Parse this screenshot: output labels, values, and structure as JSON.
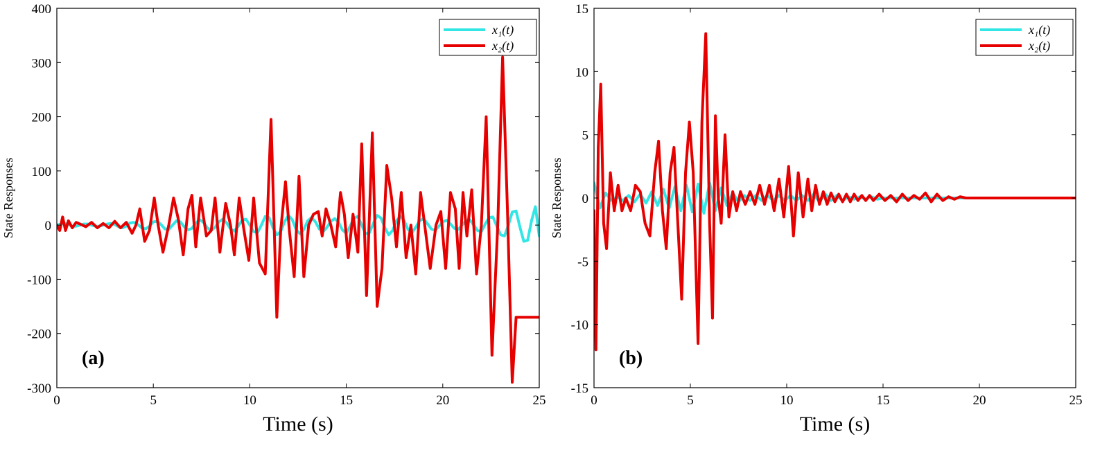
{
  "chart_data": [
    {
      "type": "line",
      "panel_label": "(a)",
      "xlabel": "Time (s)",
      "ylabel": "State Responses",
      "xlim": [
        0,
        25
      ],
      "ylim": [
        -300,
        400
      ],
      "xticks": [
        0,
        5,
        10,
        15,
        20,
        25
      ],
      "yticks": [
        -300,
        -200,
        -100,
        0,
        100,
        200,
        300,
        400
      ],
      "legend_position": "top-right",
      "series": [
        {
          "name": "x1(t)",
          "legend_label": "x₁(t)",
          "color": "#33e6e6",
          "x": [
            0,
            0.2,
            0.4,
            0.6,
            0.8,
            1.0,
            1.2,
            1.4,
            1.6,
            1.8,
            2.0,
            2.2,
            2.4,
            2.6,
            2.8,
            3.0,
            3.2,
            3.4,
            3.6,
            3.8,
            4.0,
            4.2,
            4.4,
            4.6,
            4.8,
            5.0,
            5.2,
            5.4,
            5.6,
            5.8,
            6.0,
            6.2,
            6.4,
            6.6,
            6.8,
            7.0,
            7.2,
            7.4,
            7.6,
            7.8,
            8.0,
            8.2,
            8.4,
            8.6,
            8.8,
            9.0,
            9.2,
            9.4,
            9.6,
            9.8,
            10.0,
            10.2,
            10.4,
            10.6,
            10.8,
            11.0,
            11.2,
            11.4,
            11.6,
            11.8,
            12.0,
            12.2,
            12.4,
            12.6,
            12.8,
            13.0,
            13.2,
            13.4,
            13.6,
            13.8,
            14.0,
            14.2,
            14.4,
            14.6,
            14.8,
            15.0,
            15.2,
            15.4,
            15.6,
            15.8,
            16.0,
            16.2,
            16.4,
            16.6,
            16.8,
            17.0,
            17.2,
            17.4,
            17.6,
            17.8,
            18.0,
            18.2,
            18.4,
            18.6,
            18.8,
            19.0,
            19.2,
            19.4,
            19.6,
            19.8,
            20.0,
            20.2,
            20.4,
            20.6,
            20.8,
            21.0,
            21.2,
            21.4,
            21.6,
            21.8,
            22.0,
            22.2,
            22.4,
            22.6,
            22.8,
            23.0,
            23.2,
            23.4,
            23.6,
            23.8,
            24.0,
            24.2,
            24.4,
            24.6,
            24.8,
            25.0
          ],
          "y": [
            0,
            2,
            3,
            1,
            -2,
            -2,
            0,
            2,
            2,
            0,
            -2,
            -2,
            0,
            2,
            3,
            1,
            -3,
            -5,
            -2,
            4,
            5,
            1,
            -5,
            -7,
            -2,
            6,
            7,
            1,
            -7,
            -8,
            0,
            8,
            6,
            -3,
            -9,
            -6,
            4,
            10,
            5,
            -5,
            -10,
            -4,
            6,
            11,
            4,
            -7,
            -11,
            -2,
            9,
            11,
            0,
            -12,
            -14,
            0,
            16,
            14,
            -5,
            -18,
            -12,
            6,
            18,
            10,
            -8,
            -16,
            -8,
            8,
            14,
            6,
            -7,
            -12,
            -4,
            7,
            12,
            5,
            -9,
            -15,
            -2,
            13,
            16,
            0,
            -16,
            -14,
            3,
            18,
            13,
            -5,
            -18,
            -10,
            8,
            16,
            8,
            -8,
            -14,
            -4,
            8,
            12,
            3,
            -7,
            -10,
            -2,
            6,
            9,
            2,
            -6,
            -8,
            0,
            8,
            10,
            0,
            -10,
            -12,
            2,
            14,
            15,
            -2,
            -18,
            -20,
            0,
            24,
            26,
            -4,
            -30,
            -28,
            8,
            34,
            -20
          ]
        },
        {
          "name": "x2(t)",
          "legend_label": "x₂(t)",
          "color": "#e60000",
          "x": [
            0,
            0.15,
            0.3,
            0.45,
            0.6,
            0.8,
            1.0,
            1.2,
            1.5,
            1.8,
            2.1,
            2.4,
            2.7,
            3.0,
            3.3,
            3.6,
            3.9,
            4.1,
            4.3,
            4.55,
            4.8,
            5.05,
            5.25,
            5.5,
            5.8,
            6.05,
            6.3,
            6.55,
            6.8,
            7.0,
            7.2,
            7.45,
            7.75,
            8.0,
            8.2,
            8.45,
            8.75,
            9.0,
            9.2,
            9.45,
            9.7,
            9.95,
            10.2,
            10.5,
            10.8,
            11.1,
            11.4,
            11.6,
            11.85,
            12.05,
            12.3,
            12.55,
            12.8,
            13.05,
            13.3,
            13.55,
            13.75,
            13.95,
            14.2,
            14.45,
            14.7,
            14.9,
            15.1,
            15.35,
            15.6,
            15.8,
            16.05,
            16.35,
            16.6,
            16.85,
            17.1,
            17.35,
            17.6,
            17.85,
            18.1,
            18.35,
            18.6,
            18.85,
            19.1,
            19.35,
            19.65,
            19.9,
            20.15,
            20.4,
            20.65,
            20.85,
            21.05,
            21.25,
            21.5,
            21.75,
            22.0,
            22.25,
            22.55,
            22.85,
            23.1,
            23.35,
            23.6,
            23.8,
            24.05,
            24.3,
            24.55,
            24.75,
            24.9,
            25.0
          ],
          "y": [
            0,
            -10,
            15,
            -10,
            8,
            -5,
            5,
            2,
            -3,
            5,
            -5,
            3,
            -5,
            7,
            -5,
            5,
            -15,
            0,
            30,
            -30,
            -10,
            50,
            0,
            -50,
            0,
            50,
            10,
            -55,
            30,
            55,
            -40,
            50,
            -20,
            -10,
            50,
            -50,
            40,
            0,
            -55,
            50,
            -10,
            -65,
            50,
            -70,
            -90,
            195,
            -170,
            -10,
            80,
            -10,
            -95,
            90,
            -95,
            0,
            20,
            25,
            -20,
            30,
            0,
            -40,
            60,
            20,
            -60,
            20,
            -50,
            150,
            -130,
            170,
            -150,
            -80,
            110,
            50,
            -40,
            60,
            -60,
            0,
            -90,
            60,
            -10,
            -80,
            0,
            25,
            -80,
            60,
            30,
            -80,
            60,
            -20,
            65,
            -90,
            0,
            200,
            -240,
            0,
            310,
            30,
            -290,
            -170,
            -170,
            -170,
            -170,
            -170,
            -170,
            -170
          ]
        }
      ]
    },
    {
      "type": "line",
      "panel_label": "(b)",
      "xlabel": "Time (s)",
      "ylabel": "State Responses",
      "xlim": [
        0,
        25
      ],
      "ylim": [
        -15,
        15
      ],
      "xticks": [
        0,
        5,
        10,
        15,
        20,
        25
      ],
      "yticks": [
        -15,
        -10,
        -5,
        0,
        5,
        10,
        15
      ],
      "legend_position": "top-right",
      "series": [
        {
          "name": "x1(t)",
          "legend_label": "x₁(t)",
          "color": "#33e6e6",
          "x": [
            0,
            0.3,
            0.6,
            0.9,
            1.2,
            1.5,
            1.8,
            2.1,
            2.4,
            2.7,
            3.0,
            3.3,
            3.6,
            3.9,
            4.2,
            4.5,
            4.8,
            5.1,
            5.4,
            5.7,
            6.0,
            6.3,
            6.6,
            6.9,
            7.2,
            7.5,
            7.8,
            8.1,
            8.4,
            8.7,
            9.0,
            9.3,
            9.6,
            9.9,
            10.2,
            10.5,
            10.8,
            11.1,
            11.4,
            11.7,
            12.0,
            12.3,
            12.6,
            12.9,
            13.2,
            13.5,
            13.8,
            14.1,
            14.4,
            14.7,
            15.0,
            16,
            17,
            18,
            19,
            20,
            21,
            22,
            23,
            24,
            25
          ],
          "y": [
            1.2,
            -0.8,
            0.4,
            -0.2,
            0.1,
            -0.2,
            0.2,
            -0.3,
            0.3,
            -0.4,
            0.5,
            -0.6,
            0.7,
            -0.8,
            0.9,
            -1.0,
            1.0,
            -1.1,
            1.1,
            -1.2,
            1.2,
            -1.0,
            0.8,
            -0.6,
            0.4,
            -0.3,
            0.2,
            -0.2,
            0.2,
            -0.2,
            0.2,
            -0.2,
            0.2,
            -0.2,
            0.2,
            -0.2,
            0.2,
            -0.2,
            0.3,
            -0.3,
            0.3,
            -0.2,
            0.2,
            -0.2,
            0.1,
            -0.1,
            0.1,
            -0.1,
            0.1,
            -0.1,
            0,
            0,
            0,
            0,
            0,
            0,
            0,
            0,
            0,
            0,
            0
          ]
        },
        {
          "name": "x2(t)",
          "legend_label": "x₂(t)",
          "color": "#e60000",
          "x": [
            0,
            0.1,
            0.22,
            0.35,
            0.5,
            0.65,
            0.85,
            1.05,
            1.25,
            1.45,
            1.65,
            1.9,
            2.15,
            2.4,
            2.65,
            2.9,
            3.15,
            3.35,
            3.55,
            3.75,
            3.95,
            4.15,
            4.35,
            4.55,
            4.75,
            4.95,
            5.15,
            5.4,
            5.6,
            5.8,
            6.0,
            6.15,
            6.3,
            6.45,
            6.6,
            6.8,
            7.0,
            7.2,
            7.4,
            7.6,
            7.85,
            8.1,
            8.35,
            8.6,
            8.85,
            9.1,
            9.35,
            9.6,
            9.85,
            10.1,
            10.35,
            10.6,
            10.85,
            11.1,
            11.3,
            11.5,
            11.7,
            11.9,
            12.1,
            12.3,
            12.5,
            12.7,
            12.9,
            13.1,
            13.3,
            13.5,
            13.7,
            13.9,
            14.1,
            14.3,
            14.5,
            14.8,
            15.1,
            15.4,
            15.7,
            16.0,
            16.3,
            16.6,
            16.9,
            17.2,
            17.5,
            17.8,
            18.1,
            18.4,
            18.7,
            19.0,
            19.3,
            19.6,
            20.0,
            20.5,
            21.0,
            22,
            23,
            24,
            25
          ],
          "y": [
            -1,
            -12,
            4,
            9,
            -2,
            -4,
            2,
            -1,
            1,
            -1,
            0,
            -1,
            1,
            0.5,
            -2,
            -3,
            2,
            4.5,
            -1,
            -4,
            2,
            4,
            -2,
            -8,
            2,
            6,
            2,
            -11.5,
            6,
            13,
            -2,
            -9.5,
            6.5,
            0,
            -2,
            5,
            -1.5,
            0.5,
            -1,
            0.5,
            -0.5,
            0.5,
            -0.5,
            1,
            -0.5,
            1,
            -1,
            1.5,
            -1.5,
            2.5,
            -3,
            2,
            -1.5,
            1.5,
            -1,
            1,
            -0.5,
            0.5,
            -0.5,
            0.4,
            -0.3,
            0.3,
            -0.3,
            0.3,
            -0.3,
            0.3,
            -0.2,
            0.2,
            -0.2,
            0.2,
            -0.2,
            0.3,
            -0.2,
            0.2,
            -0.3,
            0.3,
            -0.2,
            0.2,
            -0.1,
            0.4,
            -0.3,
            0.3,
            -0.2,
            0.1,
            -0.1,
            0.1,
            0,
            0,
            0,
            0,
            0,
            0,
            0,
            0,
            0
          ]
        }
      ]
    }
  ]
}
